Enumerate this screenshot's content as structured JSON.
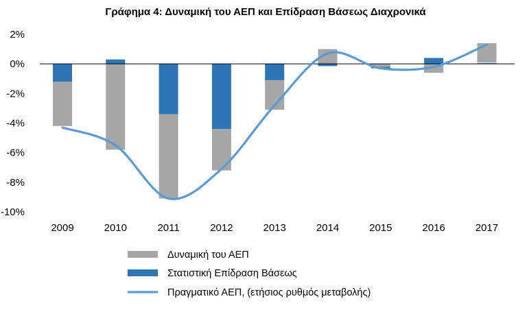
{
  "chart_data": {
    "type": "bar",
    "title": "Γράφημα 4: Δυναμική του ΑΕΠ και Επίδραση Βάσεως Διαχρονικά",
    "categories": [
      "2009",
      "2010",
      "2011",
      "2012",
      "2013",
      "2014",
      "2015",
      "2016",
      "2017"
    ],
    "y_ticks": [
      "2%",
      "0%",
      "-2%",
      "-4%",
      "-6%",
      "-8%",
      "-10%"
    ],
    "y_tick_values": [
      2,
      0,
      -2,
      -4,
      -6,
      -8,
      -10
    ],
    "ylim": [
      -10,
      2
    ],
    "stacked": true,
    "grid": false,
    "legend_position": "bottom",
    "series": [
      {
        "name": "Δυναμική του ΑΕΠ",
        "kind": "bar",
        "color": "#a6a6a6",
        "segments": [
          [
            -4.2,
            -1.2
          ],
          [
            -5.8,
            0.0
          ],
          [
            -9.1,
            -3.4
          ],
          [
            -7.2,
            -4.4
          ],
          [
            -3.1,
            -1.1
          ],
          [
            0.0,
            1.0
          ],
          [
            -0.2,
            0.0
          ],
          [
            -0.6,
            0.0
          ],
          [
            0.1,
            1.4
          ]
        ]
      },
      {
        "name": "Στατιστική Επίδραση Βάσεως",
        "kind": "bar",
        "color": "#2e75b6",
        "segments": [
          [
            -1.2,
            0.0
          ],
          [
            0.0,
            0.3
          ],
          [
            -3.4,
            0.0
          ],
          [
            -4.4,
            0.0
          ],
          [
            -1.1,
            0.0
          ],
          [
            -0.15,
            0.0
          ],
          [
            -0.3,
            -0.2
          ],
          [
            0.0,
            0.4
          ],
          [
            0.0,
            0.05
          ]
        ]
      },
      {
        "name": "Πραγματικό ΑΕΠ, (ετήσιος ρυθμός μεταβολής)",
        "kind": "line",
        "color": "#5b9bd5",
        "values": [
          -4.3,
          -5.5,
          -9.1,
          -7.1,
          -2.8,
          0.7,
          -0.3,
          -0.2,
          1.3
        ]
      }
    ]
  }
}
